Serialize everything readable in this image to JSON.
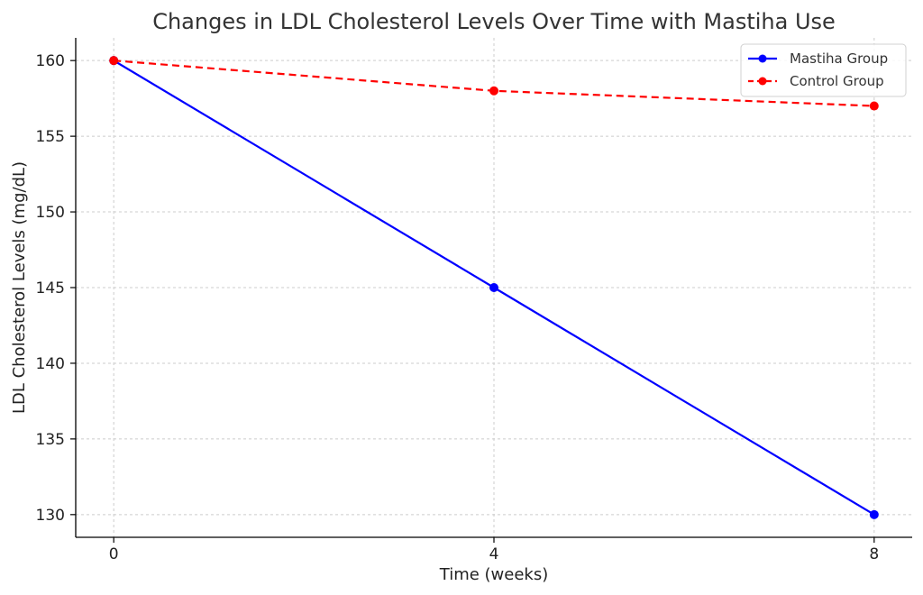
{
  "chart_data": {
    "type": "line",
    "title": "Changes in LDL Cholesterol Levels Over Time with Mastiha Use",
    "xlabel": "Time (weeks)",
    "ylabel": "LDL Cholesterol Levels (mg/dL)",
    "x": [
      0,
      4,
      8
    ],
    "x_ticks": [
      "0",
      "4",
      "8"
    ],
    "y_ticks": [
      "130",
      "135",
      "140",
      "145",
      "150",
      "155",
      "160"
    ],
    "xlim": [
      -0.4,
      8.4
    ],
    "ylim": [
      128.5,
      161.5
    ],
    "grid": true,
    "legend_position": "top-right",
    "series": [
      {
        "name": "Mastiha Group",
        "values": [
          160,
          145,
          130
        ],
        "color": "#0000ff",
        "line_style": "solid",
        "marker": "circle"
      },
      {
        "name": "Control Group",
        "values": [
          160,
          158,
          157
        ],
        "color": "#ff0000",
        "line_style": "dashed",
        "marker": "circle"
      }
    ]
  }
}
